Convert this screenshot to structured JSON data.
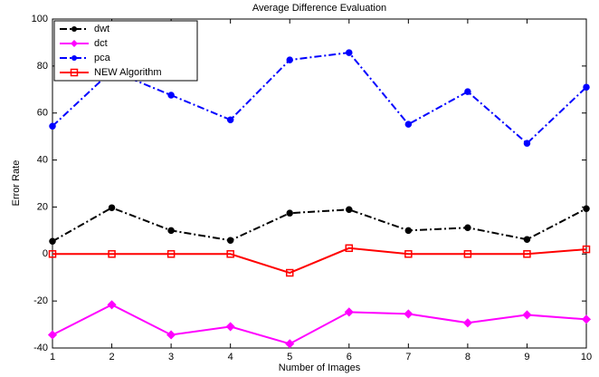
{
  "chart_data": {
    "type": "line",
    "title": "Average Difference Evaluation",
    "x_label": "Number of Images",
    "y_label": "Error Rate",
    "x": [
      1,
      2,
      3,
      4,
      5,
      6,
      7,
      8,
      9,
      10
    ],
    "xlim": [
      1,
      10
    ],
    "xticks": [
      1,
      2,
      3,
      4,
      5,
      6,
      7,
      8,
      9,
      10
    ],
    "ylim": [
      -40,
      100
    ],
    "yticks": [
      -40,
      -20,
      0,
      20,
      40,
      60,
      80,
      100
    ],
    "legend": "upper-left",
    "series": [
      {
        "name": "dwt",
        "color": "#000000",
        "linestyle": "dashdot",
        "marker": "circle",
        "values": [
          5.4,
          19.7,
          10,
          5.8,
          17.4,
          18.9,
          10,
          11.2,
          6.2,
          19.3
        ]
      },
      {
        "name": "dct",
        "color": "#ff00ff",
        "linestyle": "solid",
        "marker": "diamond",
        "values": [
          -34.4,
          -21.6,
          -34.4,
          -30.9,
          -38.2,
          -24.7,
          -25.5,
          -29.3,
          -25.9,
          -27.8
        ]
      },
      {
        "name": "pca",
        "color": "#0000ff",
        "linestyle": "dashdot",
        "marker": "circle",
        "values": [
          54.4,
          78,
          67.6,
          57.1,
          82.6,
          85.7,
          55.2,
          69.1,
          47.1,
          71.0
        ]
      },
      {
        "name": "NEW Algorithm",
        "color": "#ff0000",
        "linestyle": "solid",
        "marker": "square",
        "values": [
          0,
          0,
          0,
          0,
          -8,
          2.5,
          0,
          0,
          0,
          2
        ]
      }
    ]
  }
}
